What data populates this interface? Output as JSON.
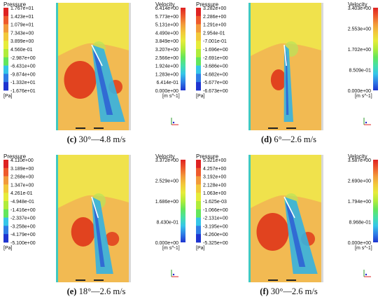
{
  "colors": {
    "scale": [
      "#1e34d0",
      "#2f7de6",
      "#35c6e8",
      "#45e0a8",
      "#63e65c",
      "#b0ec3a",
      "#e6ec3a",
      "#f2c93a",
      "#f29a3a",
      "#ee5a2c",
      "#de2222"
    ],
    "pressure_steps": [
      "#de2222",
      "#ee5a2c",
      "#f29a3a",
      "#f2c93a",
      "#e6ec3a",
      "#b0ec3a",
      "#63e65c",
      "#35c6e8",
      "#2f7de6",
      "#1e34d0"
    ],
    "background": "#f0e24c",
    "wake": "#f2b354",
    "high": "#e1431f",
    "jet": "#35b2e0",
    "core": "#2f63d4",
    "wall": "#40c9c0"
  },
  "legend": {
    "pressure_title": "Pressure",
    "pressure_unit": "[Pa]",
    "velocity_title": "Velocity",
    "velocity_unit": "[m s^-1]"
  },
  "panels": [
    {
      "id": "c",
      "caption_label": "(c)",
      "caption_text": "30°—4.8 m/s",
      "angle_deg": 30,
      "pressure_ticks": [
        "1.767e+01",
        "1.423e+01",
        "1.079e+01",
        "7.343e+00",
        "3.899e+00",
        "4.560e-01",
        "-2.987e+00",
        "-6.431e+00",
        "-9.874e+00",
        "-1.332e+01",
        "-1.676e+01"
      ],
      "velocity_ticks": [
        "6.414e+00",
        "5.773e+00",
        "5.131e+00",
        "4.490e+00",
        "3.849e+00",
        "3.207e+00",
        "2.566e+00",
        "1.924e+00",
        "1.283e+00",
        "6.414e-01",
        "0.000e+00"
      ]
    },
    {
      "id": "d",
      "caption_label": "(d)",
      "caption_text": "6°—2.6 m/s",
      "angle_deg": 6,
      "pressure_ticks": [
        "3.282e+00",
        "2.286e+00",
        "1.291e+00",
        "2.954e-01",
        "-7.001e-01",
        "-1.696e+00",
        "-2.691e+00",
        "-3.686e+00",
        "-4.682e+00",
        "-5.677e+00",
        "-6.673e+00"
      ],
      "velocity_ticks": [
        "3.403e+00",
        "2.553e+00",
        "1.702e+00",
        "8.509e-01",
        "0.000e+00"
      ]
    },
    {
      "id": "e",
      "caption_label": "(e)",
      "caption_text": "18°—2.6 m/s",
      "angle_deg": 18,
      "pressure_ticks": [
        "4.110e+00",
        "3.189e+00",
        "2.268e+00",
        "1.347e+00",
        "4.261e-01",
        "-4.948e-01",
        "-1.416e+00",
        "-2.337e+00",
        "-3.258e+00",
        "-4.179e+00",
        "-5.100e+00"
      ],
      "velocity_ticks": [
        "3.372e+00",
        "2.529e+00",
        "1.686e+00",
        "8.430e-01",
        "0.000e+00"
      ]
    },
    {
      "id": "f",
      "caption_label": "(f)",
      "caption_text": "30°—2.6 m/s",
      "angle_deg": 30,
      "pressure_ticks": [
        "5.321e+00",
        "4.257e+00",
        "3.192e+00",
        "2.128e+00",
        "1.063e+00",
        "-1.625e-03",
        "-1.066e+00",
        "-2.131e+00",
        "-3.195e+00",
        "-4.260e+00",
        "-5.325e+00"
      ],
      "velocity_ticks": [
        "3.587e+00",
        "2.690e+00",
        "1.794e+00",
        "8.968e-01",
        "0.000e+00"
      ]
    }
  ]
}
